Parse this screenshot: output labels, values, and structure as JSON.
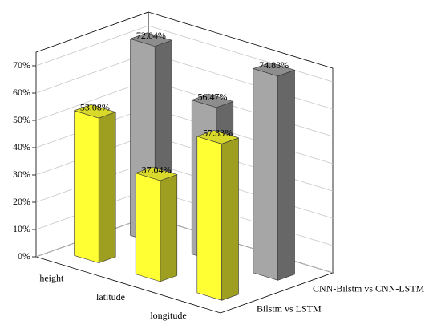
{
  "chart_data": {
    "type": "bar",
    "categories": [
      "height",
      "latitude",
      "longitude"
    ],
    "series": [
      {
        "name": "Bilstm vs LSTM",
        "color": "#ffff33",
        "values": [
          53.08,
          37.04,
          57.33
        ],
        "value_labels": [
          "53.08%",
          "37.04%",
          "57.33%"
        ]
      },
      {
        "name": "CNN-Bilstm vs CNN-LSTM",
        "color": "#a6a6a6",
        "values": [
          72.04,
          56.47,
          74.83
        ],
        "value_labels": [
          "72.04%",
          "56.47%",
          "74.83%"
        ]
      }
    ],
    "ylim": [
      0,
      75
    ],
    "yticks": [
      {
        "value": 0,
        "label": "0%"
      },
      {
        "value": 10,
        "label": "10%"
      },
      {
        "value": 20,
        "label": "20%"
      },
      {
        "value": 30,
        "label": "30%"
      },
      {
        "value": 40,
        "label": "40%"
      },
      {
        "value": 50,
        "label": "50%"
      },
      {
        "value": 60,
        "label": "60%"
      },
      {
        "value": 70,
        "label": "70%"
      }
    ],
    "grid": true
  }
}
